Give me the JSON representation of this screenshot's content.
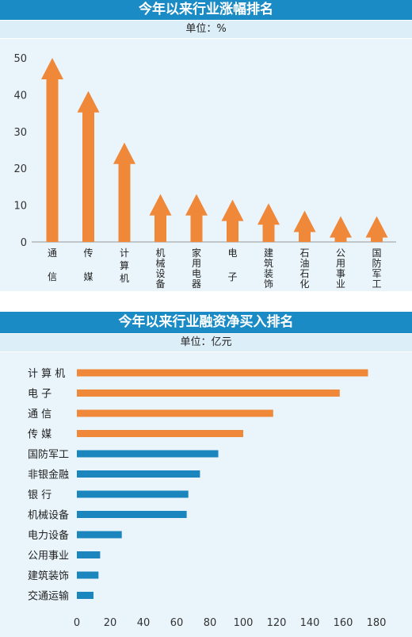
{
  "colors": {
    "orange": "#f0883a",
    "blue": "#1b86bd",
    "header": "#1a8bc4",
    "band": "#dceef8",
    "panel": "#e9f4fb"
  },
  "chart_data": [
    {
      "type": "bar",
      "title": "今年以来行业涨幅排名",
      "unit": "单位：%",
      "categories": [
        [
          "通",
          "信"
        ],
        [
          "传",
          "媒"
        ],
        [
          "计",
          "算",
          "机"
        ],
        [
          "机",
          "械",
          "设",
          "备"
        ],
        [
          "家",
          "用",
          "电",
          "器"
        ],
        [
          "电",
          "子"
        ],
        [
          "建",
          "筑",
          "装",
          "饰"
        ],
        [
          "石",
          "油",
          "石",
          "化"
        ],
        [
          "公",
          "用",
          "事",
          "业"
        ],
        [
          "国",
          "防",
          "军",
          "工"
        ]
      ],
      "values": [
        50,
        41,
        27,
        13,
        13,
        11.5,
        10.5,
        8.5,
        7,
        7
      ],
      "yticks": [
        0,
        10,
        20,
        30,
        40,
        50
      ],
      "ylim": [
        0,
        50
      ],
      "bar_color": "#f0883a",
      "marker": "arrow"
    },
    {
      "type": "bar",
      "orientation": "horizontal",
      "title": "今年以来行业融资净买入排名",
      "unit": "单位：亿元",
      "categories": [
        "计 算 机",
        "电    子",
        "通    信",
        "传    媒",
        "国防军工",
        "非银金融",
        "银    行",
        "机械设备",
        "电力设备",
        "公用事业",
        "建筑装饰",
        "交通运输"
      ],
      "values": [
        175,
        158,
        118,
        100,
        85,
        74,
        67,
        66,
        27,
        14,
        13,
        10
      ],
      "colors": [
        "#f0883a",
        "#f0883a",
        "#f0883a",
        "#f0883a",
        "#1b86bd",
        "#1b86bd",
        "#1b86bd",
        "#1b86bd",
        "#1b86bd",
        "#1b86bd",
        "#1b86bd",
        "#1b86bd"
      ],
      "xticks": [
        0,
        20,
        40,
        60,
        80,
        100,
        120,
        140,
        160,
        180
      ],
      "xlim": [
        0,
        180
      ]
    }
  ]
}
